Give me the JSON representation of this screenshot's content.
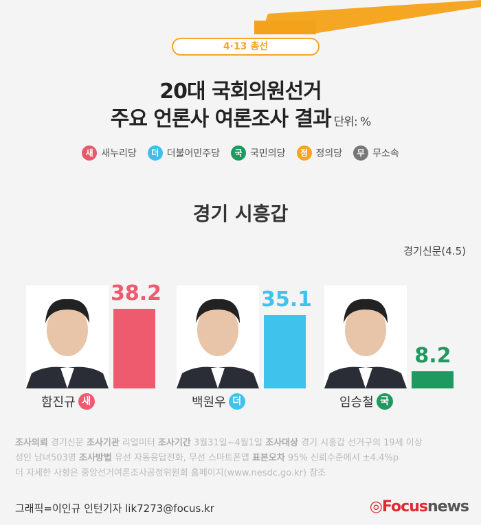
{
  "header": {
    "tag": "4·13 총선",
    "title_line1": "20대 국회의원선거",
    "title_line2": "주요 언론사 여론조사 결과",
    "unit": "단위: %"
  },
  "legend": [
    {
      "badge": "새",
      "label": "새누리당",
      "color": "#e85a6b"
    },
    {
      "badge": "더",
      "label": "더불어민주당",
      "color": "#3fbfe8"
    },
    {
      "badge": "국",
      "label": "국민의당",
      "color": "#1e9a60"
    },
    {
      "badge": "정",
      "label": "정의당",
      "color": "#f5a623"
    },
    {
      "badge": "무",
      "label": "무소속",
      "color": "#777777"
    }
  ],
  "region": "경기 시흥갑",
  "source": "경기신문(4.5)",
  "chart_data": {
    "type": "bar",
    "categories": [
      "함진규",
      "백원우",
      "임승철"
    ],
    "values": [
      38.2,
      35.1,
      8.2
    ],
    "parties": [
      "새",
      "더",
      "국"
    ],
    "colors": [
      "#ee5a6e",
      "#3fc3ec",
      "#1e9a60"
    ],
    "ylim": [
      0,
      45
    ]
  },
  "notes": {
    "l1": [
      [
        "조사의뢰",
        true
      ],
      [
        " 경기신문 ",
        false
      ],
      [
        "조사기관",
        true
      ],
      [
        " 리얼미터 ",
        false
      ],
      [
        "조사기간",
        true
      ],
      [
        " 3월31일~4월1일 ",
        false
      ],
      [
        "조사대상",
        true
      ],
      [
        " 경기 시흥갑 선거구의 19세 이상",
        false
      ]
    ],
    "l2": [
      [
        "성인 남녀503명 ",
        false
      ],
      [
        "조사방법",
        true
      ],
      [
        " 유선 자동응답전화, 무선 스마트폰앱 ",
        false
      ],
      [
        "표본오차",
        true
      ],
      [
        " 95% 신뢰수준에서 ±4.4%p",
        false
      ]
    ],
    "l3": "더 자세한 사항은 중앙선거여론조사공정위원회 홈페이지(www.nesdc.go.kr) 참조"
  },
  "credit": "그래픽=이인규 인턴기자 lik7273@focus.kr",
  "logo": {
    "part1": "Focus",
    "part2": "news"
  }
}
